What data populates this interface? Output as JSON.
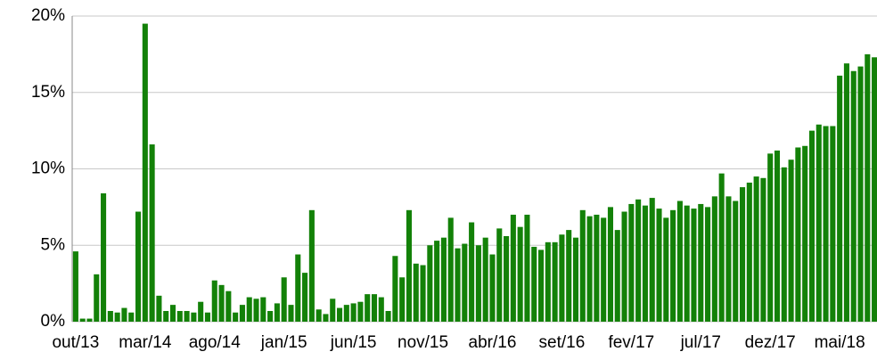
{
  "chart_data": {
    "type": "bar",
    "categories": [
      "out/13",
      null,
      null,
      null,
      null,
      null,
      null,
      null,
      null,
      null,
      "mar/14",
      null,
      null,
      null,
      null,
      null,
      null,
      null,
      null,
      null,
      "ago/14",
      null,
      null,
      null,
      null,
      null,
      null,
      null,
      null,
      null,
      "jan/15",
      null,
      null,
      null,
      null,
      null,
      null,
      null,
      null,
      null,
      "jun/15",
      null,
      null,
      null,
      null,
      null,
      null,
      null,
      null,
      null,
      "nov/15",
      null,
      null,
      null,
      null,
      null,
      null,
      null,
      null,
      null,
      "abr/16",
      null,
      null,
      null,
      null,
      null,
      null,
      null,
      null,
      null,
      "set/16",
      null,
      null,
      null,
      null,
      null,
      null,
      null,
      null,
      null,
      "fev/17",
      null,
      null,
      null,
      null,
      null,
      null,
      null,
      null,
      null,
      "jul/17",
      null,
      null,
      null,
      null,
      null,
      null,
      null,
      null,
      null,
      "dez/17",
      null,
      null,
      null,
      null,
      null,
      null,
      null,
      null,
      null,
      "mai/18",
      null,
      null,
      null,
      null,
      null
    ],
    "values": [
      4.6,
      0.2,
      0.2,
      3.1,
      8.4,
      0.7,
      0.6,
      0.9,
      0.6,
      7.2,
      19.5,
      11.6,
      1.7,
      0.7,
      1.1,
      0.7,
      0.7,
      0.6,
      1.3,
      0.6,
      2.7,
      2.4,
      2.0,
      0.6,
      1.1,
      1.6,
      1.5,
      1.6,
      0.7,
      1.2,
      2.9,
      1.1,
      4.4,
      3.2,
      7.3,
      0.8,
      0.5,
      1.5,
      0.9,
      1.1,
      1.2,
      1.3,
      1.8,
      1.8,
      1.6,
      0.7,
      4.3,
      2.9,
      7.3,
      3.8,
      3.7,
      5.0,
      5.3,
      5.5,
      6.8,
      4.8,
      5.1,
      6.5,
      5.0,
      5.5,
      4.4,
      6.1,
      5.6,
      7.0,
      6.2,
      7.0,
      4.9,
      4.7,
      5.2,
      5.2,
      5.7,
      6.0,
      5.5,
      7.3,
      6.9,
      7.0,
      6.8,
      7.5,
      6.0,
      7.2,
      7.7,
      8.0,
      7.6,
      8.1,
      7.4,
      6.8,
      7.3,
      7.9,
      7.6,
      7.4,
      7.7,
      7.5,
      8.2,
      9.7,
      8.2,
      7.9,
      8.8,
      9.1,
      9.5,
      9.4,
      11.0,
      11.2,
      10.1,
      10.6,
      11.4,
      11.5,
      12.5,
      12.9,
      12.8,
      12.8,
      16.1,
      16.9,
      16.4,
      16.7,
      17.5,
      17.3
    ],
    "color": "#138108",
    "ylim": [
      0,
      20
    ],
    "yticks": [
      {
        "value": 0,
        "label": "0%"
      },
      {
        "value": 5,
        "label": "5%"
      },
      {
        "value": 10,
        "label": "10%"
      },
      {
        "value": 15,
        "label": "15%"
      },
      {
        "value": 20,
        "label": "20%"
      }
    ],
    "grid": true
  }
}
